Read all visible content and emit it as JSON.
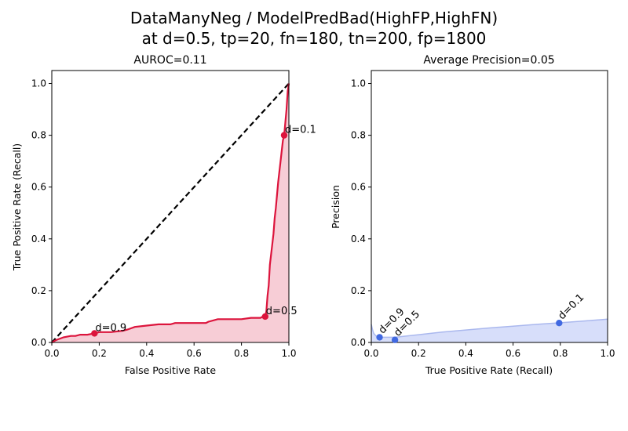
{
  "figure": {
    "title_line1": "DataManyNeg / ModelPredBad(HighFP,HighFN)",
    "title_line2": "at d=0.5, tp=20, fn=180, tn=200, fp=1800"
  },
  "chart_data": [
    {
      "type": "line",
      "title": "AUROC=0.11",
      "xlabel": "False Positive Rate",
      "ylabel": "True Positive Rate (Recall)",
      "xlim": [
        0,
        1
      ],
      "ylim": [
        0,
        1.05
      ],
      "xticks": [
        "0.0",
        "0.2",
        "0.4",
        "0.6",
        "0.8",
        "1.0"
      ],
      "yticks": [
        "0.0",
        "0.2",
        "0.4",
        "0.6",
        "0.8",
        "1.0"
      ],
      "colors": {
        "curve": "#dc143c",
        "fill": "#f7cdd6",
        "chance": "#000000"
      },
      "series": [
        {
          "x": [
            0.0,
            0.01,
            0.02,
            0.05,
            0.08,
            0.1,
            0.12,
            0.15,
            0.18,
            0.2,
            0.25,
            0.3,
            0.32,
            0.35,
            0.4,
            0.45,
            0.5,
            0.52,
            0.55,
            0.6,
            0.65,
            0.66,
            0.7,
            0.75,
            0.8,
            0.84,
            0.86,
            0.88,
            0.89,
            0.9,
            0.905,
            0.91,
            0.915,
            0.92,
            0.93,
            0.935,
            0.94,
            0.945,
            0.95,
            0.955,
            0.96,
            0.965,
            0.97,
            0.975,
            0.98,
            0.985,
            0.99,
            0.995,
            1.0
          ],
          "y": [
            0.0,
            0.005,
            0.01,
            0.02,
            0.025,
            0.025,
            0.03,
            0.03,
            0.035,
            0.04,
            0.04,
            0.045,
            0.05,
            0.06,
            0.065,
            0.07,
            0.07,
            0.075,
            0.075,
            0.075,
            0.075,
            0.08,
            0.09,
            0.09,
            0.09,
            0.095,
            0.095,
            0.095,
            0.1,
            0.1,
            0.12,
            0.18,
            0.22,
            0.3,
            0.38,
            0.42,
            0.48,
            0.52,
            0.57,
            0.62,
            0.66,
            0.7,
            0.74,
            0.78,
            0.8,
            0.85,
            0.9,
            0.97,
            1.0
          ]
        },
        {
          "name": "",
          "x": [
            0,
            1
          ],
          "y": [
            0,
            1
          ],
          "style": "dashed"
        }
      ],
      "points": [
        {
          "label": "d=0.9",
          "x": 0.18,
          "y": 0.035
        },
        {
          "label": "d=0.5",
          "x": 0.9,
          "y": 0.1
        },
        {
          "label": "d=0.1",
          "x": 0.98,
          "y": 0.8
        }
      ]
    },
    {
      "type": "area",
      "title": "Average Precision=0.05",
      "xlabel": "True Positive Rate (Recall)",
      "ylabel": "Precision",
      "xlim": [
        0,
        1
      ],
      "ylim": [
        0,
        1.05
      ],
      "xticks": [
        "0.0",
        "0.2",
        "0.4",
        "0.6",
        "0.8",
        "1.0"
      ],
      "yticks": [
        "0.0",
        "0.2",
        "0.4",
        "0.6",
        "0.8",
        "1.0"
      ],
      "colors": {
        "curve": "#aab8ee",
        "fill": "#d7defa",
        "point": "#4169e1"
      },
      "series": [
        {
          "x": [
            0.0,
            0.005,
            0.01,
            0.02,
            0.03,
            0.04,
            0.06,
            0.08,
            0.1,
            0.15,
            0.2,
            0.3,
            0.4,
            0.5,
            0.6,
            0.7,
            0.8,
            0.9,
            1.0
          ],
          "y": [
            0.07,
            0.05,
            0.035,
            0.025,
            0.02,
            0.02,
            0.02,
            0.02,
            0.02,
            0.025,
            0.03,
            0.04,
            0.048,
            0.056,
            0.063,
            0.07,
            0.076,
            0.083,
            0.09
          ]
        }
      ],
      "points": [
        {
          "label": "d=0.9",
          "x": 0.035,
          "y": 0.02
        },
        {
          "label": "d=0.5",
          "x": 0.1,
          "y": 0.01
        },
        {
          "label": "d=0.1",
          "x": 0.795,
          "y": 0.075
        }
      ]
    }
  ]
}
